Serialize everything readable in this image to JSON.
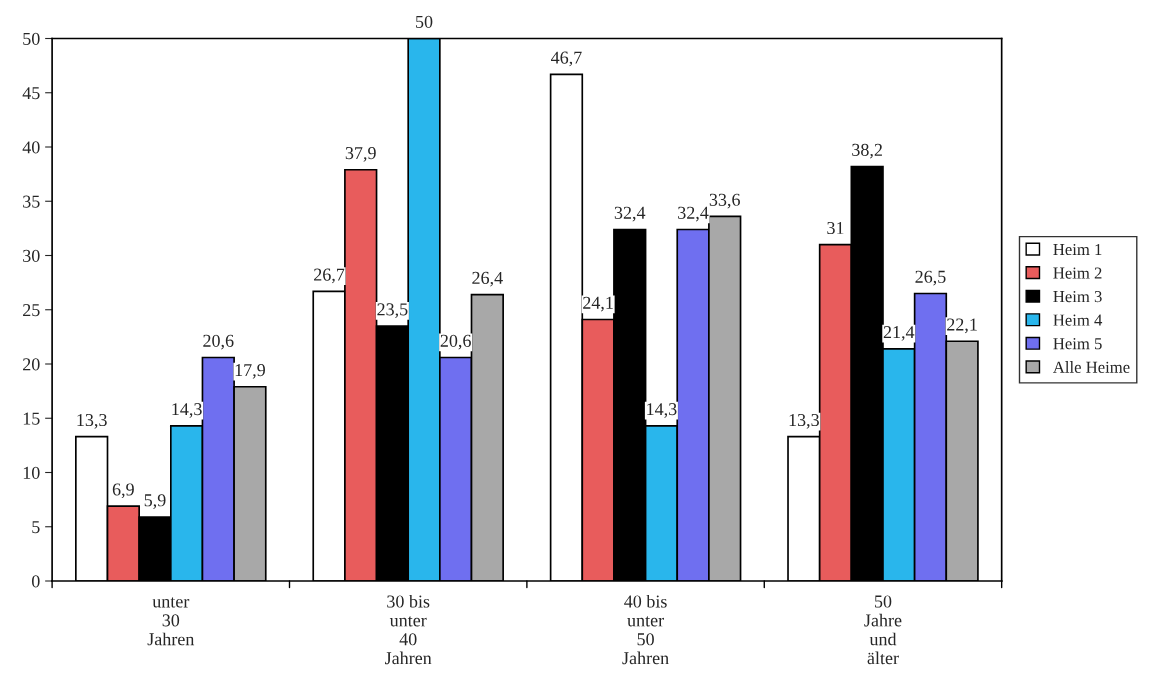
{
  "chart_data": {
    "type": "bar",
    "categories": [
      "unter\n30\nJahren",
      "30 bis\nunter\n40\nJahren",
      "40 bis\nunter\n50\nJahren",
      "50\nJahre\nund\nälter"
    ],
    "series": [
      {
        "name": "Heim 1",
        "color": "#ffffff",
        "values": [
          13.3,
          26.7,
          46.7,
          13.3
        ],
        "value_labels": [
          "13,3",
          "26,7",
          "46,7",
          "13,3"
        ]
      },
      {
        "name": "Heim 2",
        "color": "#e85c5c",
        "values": [
          6.9,
          37.9,
          24.1,
          31
        ],
        "value_labels": [
          "6,9",
          "37,9",
          "24,1",
          "31"
        ]
      },
      {
        "name": "Heim 3",
        "color": "#000000",
        "values": [
          5.9,
          23.5,
          32.4,
          38.2
        ],
        "value_labels": [
          "5,9",
          "23,5",
          "32,4",
          "38,2"
        ]
      },
      {
        "name": "Heim 4",
        "color": "#29b6ec",
        "values": [
          14.3,
          50,
          14.3,
          21.4
        ],
        "value_labels": [
          "14,3",
          "50",
          "14,3",
          "21,4"
        ]
      },
      {
        "name": "Heim 5",
        "color": "#6f6ff0",
        "values": [
          20.6,
          20.6,
          32.4,
          26.5
        ],
        "value_labels": [
          "20,6",
          "20,6",
          "32,4",
          "26,5"
        ]
      },
      {
        "name": "Alle Heime",
        "color": "#a8a8a8",
        "values": [
          17.9,
          26.4,
          33.6,
          22.1
        ],
        "value_labels": [
          "17,9",
          "26,4",
          "33,6",
          "22,1"
        ]
      }
    ],
    "ylim": [
      0,
      50
    ],
    "yticks": [
      0,
      5,
      10,
      15,
      20,
      25,
      30,
      35,
      40,
      45,
      50
    ],
    "grid": false,
    "legend": "right"
  }
}
